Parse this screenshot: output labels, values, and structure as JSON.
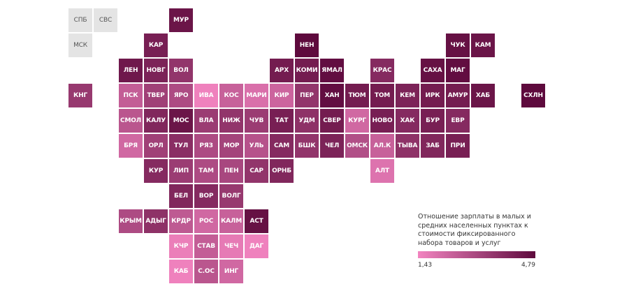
{
  "map": {
    "regions": [
      {
        "label": "СПБ",
        "col": 0,
        "row": 0,
        "value": null
      },
      {
        "label": "СВС",
        "col": 1,
        "row": 0,
        "value": null
      },
      {
        "label": "МСК",
        "col": 0,
        "row": 1,
        "value": null
      },
      {
        "label": "МУР",
        "col": 4,
        "row": 0,
        "value": 4.5
      },
      {
        "label": "КАР",
        "col": 3,
        "row": 1,
        "value": 4.2
      },
      {
        "label": "НЕН",
        "col": 9,
        "row": 1,
        "value": 4.79
      },
      {
        "label": "ЧУК",
        "col": 15,
        "row": 1,
        "value": 4.6
      },
      {
        "label": "КАМ",
        "col": 16,
        "row": 1,
        "value": 4.5
      },
      {
        "label": "ЛЕН",
        "col": 2,
        "row": 2,
        "value": 4.4
      },
      {
        "label": "НОВГ",
        "col": 3,
        "row": 2,
        "value": 4.1
      },
      {
        "label": "ВОЛ",
        "col": 4,
        "row": 2,
        "value": 3.6
      },
      {
        "label": "АРХ",
        "col": 8,
        "row": 2,
        "value": 4.3
      },
      {
        "label": "КОМИ",
        "col": 9,
        "row": 2,
        "value": 4.3
      },
      {
        "label": "ЯМАЛ",
        "col": 10,
        "row": 2,
        "value": 4.7
      },
      {
        "label": "КРАС",
        "col": 12,
        "row": 2,
        "value": 3.9
      },
      {
        "label": "САХА",
        "col": 14,
        "row": 2,
        "value": 4.6
      },
      {
        "label": "МАГ",
        "col": 15,
        "row": 2,
        "value": 4.7
      },
      {
        "label": "КНГ",
        "col": 0,
        "row": 3,
        "value": 3.5
      },
      {
        "label": "ПСК",
        "col": 2,
        "row": 3,
        "value": 2.5
      },
      {
        "label": "ТВЕР",
        "col": 3,
        "row": 3,
        "value": 3.3
      },
      {
        "label": "ЯРО",
        "col": 4,
        "row": 3,
        "value": 3.0
      },
      {
        "label": "ИВА",
        "col": 5,
        "row": 3,
        "value": 1.5
      },
      {
        "label": "КОС",
        "col": 6,
        "row": 3,
        "value": 2.4
      },
      {
        "label": "МАРИ",
        "col": 7,
        "row": 3,
        "value": 2.0
      },
      {
        "label": "КИР",
        "col": 8,
        "row": 3,
        "value": 2.3
      },
      {
        "label": "ПЕР",
        "col": 9,
        "row": 3,
        "value": 3.6
      },
      {
        "label": "ХАН",
        "col": 10,
        "row": 3,
        "value": 4.7
      },
      {
        "label": "ТЮМ",
        "col": 11,
        "row": 3,
        "value": 4.3
      },
      {
        "label": "ТОМ",
        "col": 12,
        "row": 3,
        "value": 4.3
      },
      {
        "label": "КЕМ",
        "col": 13,
        "row": 3,
        "value": 4.1
      },
      {
        "label": "ИРК",
        "col": 14,
        "row": 3,
        "value": 4.3
      },
      {
        "label": "АМУР",
        "col": 15,
        "row": 3,
        "value": 4.3
      },
      {
        "label": "ХАБ",
        "col": 16,
        "row": 3,
        "value": 4.5
      },
      {
        "label": "СХЛН",
        "col": 18,
        "row": 3,
        "value": 4.79
      },
      {
        "label": "СМОЛ",
        "col": 2,
        "row": 4,
        "value": 2.7
      },
      {
        "label": "КАЛУ",
        "col": 3,
        "row": 4,
        "value": 4.0
      },
      {
        "label": "МОС",
        "col": 4,
        "row": 4,
        "value": 4.5
      },
      {
        "label": "ВЛА",
        "col": 5,
        "row": 4,
        "value": 3.4
      },
      {
        "label": "НИЖ",
        "col": 6,
        "row": 4,
        "value": 3.6
      },
      {
        "label": "ЧУВ",
        "col": 7,
        "row": 4,
        "value": 3.4
      },
      {
        "label": "ТАТ",
        "col": 8,
        "row": 4,
        "value": 4.2
      },
      {
        "label": "УДМ",
        "col": 9,
        "row": 4,
        "value": 3.7
      },
      {
        "label": "СВЕР",
        "col": 10,
        "row": 4,
        "value": 4.3
      },
      {
        "label": "КУРГ",
        "col": 11,
        "row": 4,
        "value": 2.2
      },
      {
        "label": "НОВО",
        "col": 12,
        "row": 4,
        "value": 4.2
      },
      {
        "label": "ХАК",
        "col": 13,
        "row": 4,
        "value": 3.9
      },
      {
        "label": "БУР",
        "col": 14,
        "row": 4,
        "value": 4.2
      },
      {
        "label": "ЕВР",
        "col": 15,
        "row": 4,
        "value": 3.9
      },
      {
        "label": "БРЯ",
        "col": 2,
        "row": 5,
        "value": 2.2
      },
      {
        "label": "ОРЛ",
        "col": 3,
        "row": 5,
        "value": 3.3
      },
      {
        "label": "ТУЛ",
        "col": 4,
        "row": 5,
        "value": 3.8
      },
      {
        "label": "РЯЗ",
        "col": 5,
        "row": 5,
        "value": 3.0
      },
      {
        "label": "МОР",
        "col": 6,
        "row": 5,
        "value": 3.2
      },
      {
        "label": "УЛЬ",
        "col": 7,
        "row": 5,
        "value": 2.8
      },
      {
        "label": "САМ",
        "col": 8,
        "row": 5,
        "value": 3.9
      },
      {
        "label": "БШК",
        "col": 9,
        "row": 5,
        "value": 3.6
      },
      {
        "label": "ЧЕЛ",
        "col": 10,
        "row": 5,
        "value": 4.1
      },
      {
        "label": "ОМСК",
        "col": 11,
        "row": 5,
        "value": 2.9
      },
      {
        "label": "АЛ.К",
        "col": 12,
        "row": 5,
        "value": 2.4
      },
      {
        "label": "ТЫВА",
        "col": 13,
        "row": 5,
        "value": 3.7
      },
      {
        "label": "ЗАБ",
        "col": 14,
        "row": 5,
        "value": 4.0
      },
      {
        "label": "ПРИ",
        "col": 15,
        "row": 5,
        "value": 4.2
      },
      {
        "label": "КУР",
        "col": 3,
        "row": 6,
        "value": 3.9
      },
      {
        "label": "ЛИП",
        "col": 4,
        "row": 6,
        "value": 3.4
      },
      {
        "label": "ТАМ",
        "col": 5,
        "row": 6,
        "value": 3.0
      },
      {
        "label": "ПЕН",
        "col": 6,
        "row": 6,
        "value": 3.1
      },
      {
        "label": "САР",
        "col": 7,
        "row": 6,
        "value": 3.6
      },
      {
        "label": "ОРНБ",
        "col": 8,
        "row": 6,
        "value": 4.0
      },
      {
        "label": "АЛТ",
        "col": 12,
        "row": 6,
        "value": 1.9
      },
      {
        "label": "БЕЛ",
        "col": 4,
        "row": 7,
        "value": 4.0
      },
      {
        "label": "ВОР",
        "col": 5,
        "row": 7,
        "value": 3.9
      },
      {
        "label": "ВОЛГ",
        "col": 6,
        "row": 7,
        "value": 3.5
      },
      {
        "label": "КРЫМ",
        "col": 2,
        "row": 8,
        "value": 3.0
      },
      {
        "label": "АДЫГ",
        "col": 3,
        "row": 8,
        "value": 3.7
      },
      {
        "label": "КРДР",
        "col": 4,
        "row": 8,
        "value": 2.6
      },
      {
        "label": "РОС",
        "col": 5,
        "row": 8,
        "value": 2.2
      },
      {
        "label": "КАЛМ",
        "col": 6,
        "row": 8,
        "value": 2.4
      },
      {
        "label": "АСТ",
        "col": 7,
        "row": 8,
        "value": 4.6
      },
      {
        "label": "КЧР",
        "col": 4,
        "row": 9,
        "value": 1.6
      },
      {
        "label": "СТАВ",
        "col": 5,
        "row": 9,
        "value": 2.5
      },
      {
        "label": "ЧЕЧ",
        "col": 6,
        "row": 9,
        "value": 1.7
      },
      {
        "label": "ДАГ",
        "col": 7,
        "row": 9,
        "value": 1.5
      },
      {
        "label": "КАБ",
        "col": 4,
        "row": 10,
        "value": 1.5
      },
      {
        "label": "С.ОС",
        "col": 5,
        "row": 10,
        "value": 2.7
      },
      {
        "label": "ИНГ",
        "col": 6,
        "row": 10,
        "value": 2.2
      }
    ]
  },
  "legend": {
    "title": "Отношение зарплаты в малых и средних населенных пунктах к стоимости фиксированного набора товаров и услуг",
    "min_label": "1,43",
    "max_label": "4,79",
    "min_value": 1.43,
    "max_value": 4.79,
    "color_low": "#f284c0",
    "color_high": "#5e0a3d",
    "no_data_color": "#e4e4e4"
  }
}
